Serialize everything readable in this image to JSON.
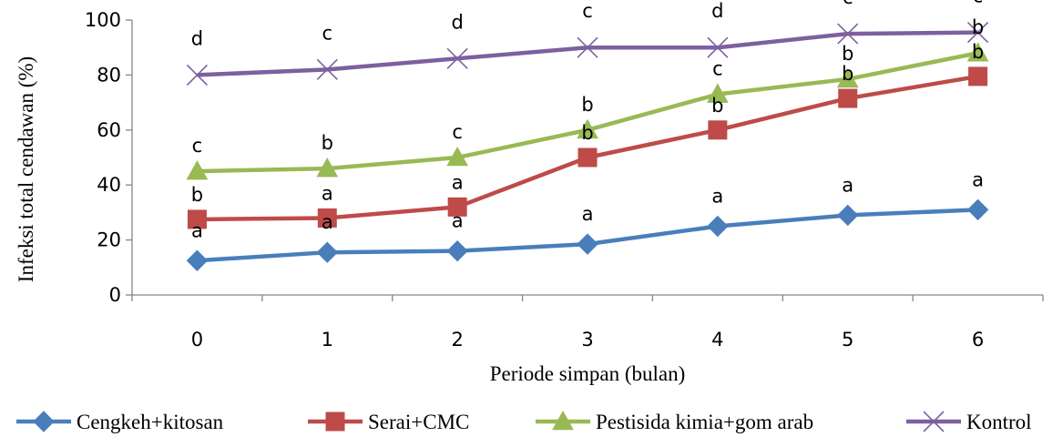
{
  "chart_data": {
    "type": "line",
    "xlabel": "Periode simpan (bulan)",
    "ylabel": "Infeksi total cendawan (%)",
    "categories": [
      "0",
      "1",
      "2",
      "3",
      "4",
      "5",
      "6"
    ],
    "ylim": [
      0,
      100
    ],
    "yticks": [
      "0",
      "20",
      "40",
      "60",
      "80",
      "100"
    ],
    "grid": false,
    "legend_position": "bottom",
    "series": [
      {
        "name": "Cengkeh+kitosan",
        "color": "#4a7ebb",
        "marker": "diamond",
        "values": [
          12.5,
          15.5,
          16,
          18.5,
          25,
          29,
          31
        ],
        "letters": [
          "a",
          "a",
          "a",
          "a",
          "a",
          "a",
          "a"
        ]
      },
      {
        "name": "Serai+CMC",
        "color": "#be4b48",
        "marker": "square",
        "values": [
          27.5,
          28,
          32,
          50,
          60,
          71.5,
          79.5
        ],
        "letters": [
          "b",
          "a",
          "a",
          "b",
          "b",
          "b",
          "b"
        ]
      },
      {
        "name": "Pestisida kimia+gom arab",
        "color": "#98b954",
        "marker": "triangle",
        "values": [
          45,
          46,
          50,
          60,
          73,
          78.5,
          88
        ],
        "letters": [
          "c",
          "b",
          "c",
          "b",
          "c",
          "b",
          "b"
        ]
      },
      {
        "name": "Kontrol",
        "color": "#7d60a0",
        "marker": "x",
        "values": [
          80,
          82,
          86,
          90,
          90,
          95,
          95.5
        ],
        "letters": [
          "d",
          "c",
          "d",
          "c",
          "d",
          "c",
          "c"
        ]
      }
    ]
  }
}
